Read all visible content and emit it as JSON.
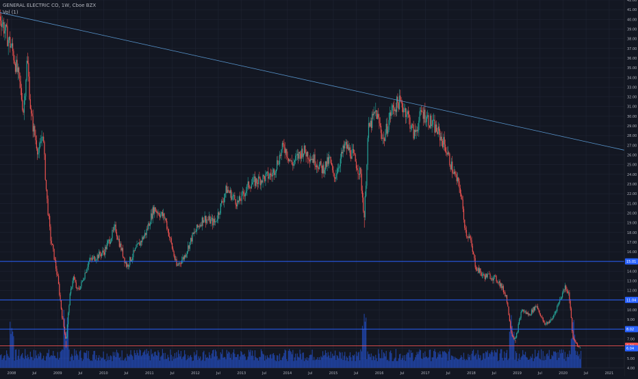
{
  "header": {
    "symbol_line": "GENERAL ELECTRIC CO, 1W, Cboe BZX",
    "volume_label": "Vol (1)"
  },
  "colors": {
    "background": "#131722",
    "grid": "#1f2433",
    "up": "#26a69a",
    "down": "#ef5350",
    "volume": "#2962ff",
    "hline": "#2962ff",
    "trendline": "#5b9bd5",
    "red_line": "#ef5350",
    "axis_text": "#b2b5be"
  },
  "chart_data": {
    "type": "candlestick",
    "title": "GENERAL ELECTRIC CO, 1W, Cboe BZX",
    "ylim": [
      4.0,
      42.0
    ],
    "y_ticks": [
      4.0,
      5.0,
      6.0,
      7.0,
      8.0,
      9.0,
      10.0,
      11.0,
      12.0,
      13.0,
      14.0,
      15.0,
      16.0,
      17.0,
      18.0,
      19.0,
      20.0,
      21.0,
      22.0,
      23.0,
      24.0,
      25.0,
      26.0,
      27.0,
      28.0,
      29.0,
      30.0,
      31.0,
      32.0,
      33.0,
      34.0,
      35.0,
      36.0,
      37.0,
      38.0,
      39.0,
      40.0,
      41.0,
      42.0
    ],
    "y_tick_labels": [
      "4.00",
      "5.00",
      "6.00",
      "7.00",
      "8.00",
      "9.00",
      "10.00",
      "11.00",
      "12.00",
      "13.00",
      "14.00",
      "15.00",
      "16.00",
      "17.00",
      "18.00",
      "19.00",
      "20.00",
      "21.00",
      "22.00",
      "23.00",
      "24.00",
      "25.00",
      "26.00",
      "27.00",
      "28.00",
      "29.00",
      "30.00",
      "31.00",
      "32.00",
      "33.00",
      "34.00",
      "35.00",
      "36.00",
      "37.00",
      "38.00",
      "39.00",
      "40.00",
      "41.00",
      "42.00"
    ],
    "x_range": [
      "2007-10-01",
      "2021-05-01"
    ],
    "x_ticks": [
      {
        "date": "2008-01-01",
        "label": "2008"
      },
      {
        "date": "2008-07-01",
        "label": "Jul"
      },
      {
        "date": "2009-01-01",
        "label": "2009"
      },
      {
        "date": "2009-07-01",
        "label": "Jul"
      },
      {
        "date": "2010-01-01",
        "label": "2010"
      },
      {
        "date": "2010-07-01",
        "label": "Jul"
      },
      {
        "date": "2011-01-01",
        "label": "2011"
      },
      {
        "date": "2011-07-01",
        "label": "Jul"
      },
      {
        "date": "2012-01-01",
        "label": "2012"
      },
      {
        "date": "2012-07-01",
        "label": "Jul"
      },
      {
        "date": "2013-01-01",
        "label": "2013"
      },
      {
        "date": "2013-07-01",
        "label": "Jul"
      },
      {
        "date": "2014-01-01",
        "label": "2014"
      },
      {
        "date": "2014-07-01",
        "label": "Jul"
      },
      {
        "date": "2015-01-01",
        "label": "2015"
      },
      {
        "date": "2015-07-01",
        "label": "Jul"
      },
      {
        "date": "2016-01-01",
        "label": "2016"
      },
      {
        "date": "2016-07-01",
        "label": "Jul"
      },
      {
        "date": "2017-01-01",
        "label": "2017"
      },
      {
        "date": "2017-07-01",
        "label": "Jul"
      },
      {
        "date": "2018-01-01",
        "label": "2018"
      },
      {
        "date": "2018-07-01",
        "label": "Jul"
      },
      {
        "date": "2019-01-01",
        "label": "2019"
      },
      {
        "date": "2019-07-01",
        "label": "Jul"
      },
      {
        "date": "2020-01-01",
        "label": "2020"
      },
      {
        "date": "2020-07-01",
        "label": "Jul"
      },
      {
        "date": "2021-01-01",
        "label": "2021"
      }
    ],
    "price_path": [
      {
        "date": "2007-10-01",
        "value": 40.3
      },
      {
        "date": "2007-11-15",
        "value": 38.5
      },
      {
        "date": "2008-01-01",
        "value": 37.0
      },
      {
        "date": "2008-03-01",
        "value": 33.5
      },
      {
        "date": "2008-04-01",
        "value": 30.5
      },
      {
        "date": "2008-05-01",
        "value": 36.0
      },
      {
        "date": "2008-06-01",
        "value": 30.0
      },
      {
        "date": "2008-07-01",
        "value": 28.0
      },
      {
        "date": "2008-08-01",
        "value": 26.0
      },
      {
        "date": "2008-09-01",
        "value": 28.5
      },
      {
        "date": "2008-10-01",
        "value": 22.0
      },
      {
        "date": "2008-11-01",
        "value": 17.5
      },
      {
        "date": "2008-12-01",
        "value": 15.5
      },
      {
        "date": "2009-01-01",
        "value": 13.0
      },
      {
        "date": "2009-02-01",
        "value": 9.5
      },
      {
        "date": "2009-03-06",
        "value": 6.8
      },
      {
        "date": "2009-04-01",
        "value": 11.0
      },
      {
        "date": "2009-05-01",
        "value": 13.5
      },
      {
        "date": "2009-06-01",
        "value": 12.0
      },
      {
        "date": "2009-07-01",
        "value": 12.5
      },
      {
        "date": "2009-09-01",
        "value": 15.0
      },
      {
        "date": "2009-11-01",
        "value": 15.5
      },
      {
        "date": "2010-01-01",
        "value": 16.0
      },
      {
        "date": "2010-04-01",
        "value": 18.5
      },
      {
        "date": "2010-05-01",
        "value": 17.0
      },
      {
        "date": "2010-07-01",
        "value": 14.5
      },
      {
        "date": "2010-09-01",
        "value": 16.0
      },
      {
        "date": "2010-12-01",
        "value": 18.0
      },
      {
        "date": "2011-02-01",
        "value": 20.5
      },
      {
        "date": "2011-05-01",
        "value": 19.5
      },
      {
        "date": "2011-08-01",
        "value": 14.5
      },
      {
        "date": "2011-10-01",
        "value": 15.5
      },
      {
        "date": "2011-12-01",
        "value": 17.5
      },
      {
        "date": "2012-03-01",
        "value": 19.5
      },
      {
        "date": "2012-06-01",
        "value": 19.0
      },
      {
        "date": "2012-09-01",
        "value": 22.5
      },
      {
        "date": "2012-12-01",
        "value": 21.0
      },
      {
        "date": "2013-03-01",
        "value": 23.0
      },
      {
        "date": "2013-06-01",
        "value": 23.5
      },
      {
        "date": "2013-09-01",
        "value": 24.0
      },
      {
        "date": "2013-12-01",
        "value": 27.0
      },
      {
        "date": "2014-02-01",
        "value": 25.0
      },
      {
        "date": "2014-05-01",
        "value": 26.5
      },
      {
        "date": "2014-08-01",
        "value": 25.5
      },
      {
        "date": "2014-10-01",
        "value": 24.5
      },
      {
        "date": "2014-12-01",
        "value": 25.5
      },
      {
        "date": "2015-01-01",
        "value": 23.5
      },
      {
        "date": "2015-04-01",
        "value": 27.0
      },
      {
        "date": "2015-06-01",
        "value": 26.0
      },
      {
        "date": "2015-08-01",
        "value": 24.0
      },
      {
        "date": "2015-09-01",
        "value": 19.5
      },
      {
        "date": "2015-10-01",
        "value": 28.5
      },
      {
        "date": "2015-12-01",
        "value": 30.5
      },
      {
        "date": "2016-02-01",
        "value": 27.5
      },
      {
        "date": "2016-04-01",
        "value": 30.5
      },
      {
        "date": "2016-06-01",
        "value": 31.5
      },
      {
        "date": "2016-08-01",
        "value": 30.5
      },
      {
        "date": "2016-10-01",
        "value": 28.0
      },
      {
        "date": "2016-12-01",
        "value": 30.5
      },
      {
        "date": "2017-02-01",
        "value": 29.5
      },
      {
        "date": "2017-04-01",
        "value": 28.5
      },
      {
        "date": "2017-06-01",
        "value": 27.0
      },
      {
        "date": "2017-08-01",
        "value": 24.5
      },
      {
        "date": "2017-10-01",
        "value": 22.5
      },
      {
        "date": "2017-11-15",
        "value": 18.0
      },
      {
        "date": "2017-12-15",
        "value": 17.5
      },
      {
        "date": "2018-02-01",
        "value": 14.5
      },
      {
        "date": "2018-04-01",
        "value": 13.5
      },
      {
        "date": "2018-06-01",
        "value": 13.5
      },
      {
        "date": "2018-08-01",
        "value": 13.0
      },
      {
        "date": "2018-10-01",
        "value": 11.5
      },
      {
        "date": "2018-11-15",
        "value": 7.5
      },
      {
        "date": "2018-12-15",
        "value": 6.9
      },
      {
        "date": "2019-02-01",
        "value": 10.0
      },
      {
        "date": "2019-04-01",
        "value": 9.5
      },
      {
        "date": "2019-06-01",
        "value": 10.5
      },
      {
        "date": "2019-08-01",
        "value": 8.5
      },
      {
        "date": "2019-10-01",
        "value": 9.0
      },
      {
        "date": "2019-12-01",
        "value": 11.0
      },
      {
        "date": "2020-01-15",
        "value": 12.5
      },
      {
        "date": "2020-02-15",
        "value": 11.5
      },
      {
        "date": "2020-03-15",
        "value": 7.0
      },
      {
        "date": "2020-04-15",
        "value": 6.5
      },
      {
        "date": "2020-05-01",
        "value": 6.1
      },
      {
        "date": "2020-05-15",
        "value": 6.3
      }
    ],
    "lows": [
      {
        "date": "2009-03-06",
        "value": 6.1
      },
      {
        "date": "2015-09-01",
        "value": 18.5
      },
      {
        "date": "2018-12-15",
        "value": 6.6
      }
    ],
    "trendline": {
      "start": {
        "date": "2007-10-01",
        "value": 40.7
      },
      "end": {
        "date": "2021-05-01",
        "value": 26.5
      }
    },
    "horizontal_lines": [
      {
        "value": 15.01,
        "label": "15.01"
      },
      {
        "value": 11.04,
        "label": "11.04"
      },
      {
        "value": 8.02,
        "label": "8.02"
      }
    ],
    "red_line": {
      "value": 6.3,
      "label": "6.30"
    },
    "last_price": {
      "value": 6.04,
      "label": "6.04"
    },
    "volume_series": "weekly volume histogram along bottom",
    "volume_label": "Vol (1)"
  }
}
